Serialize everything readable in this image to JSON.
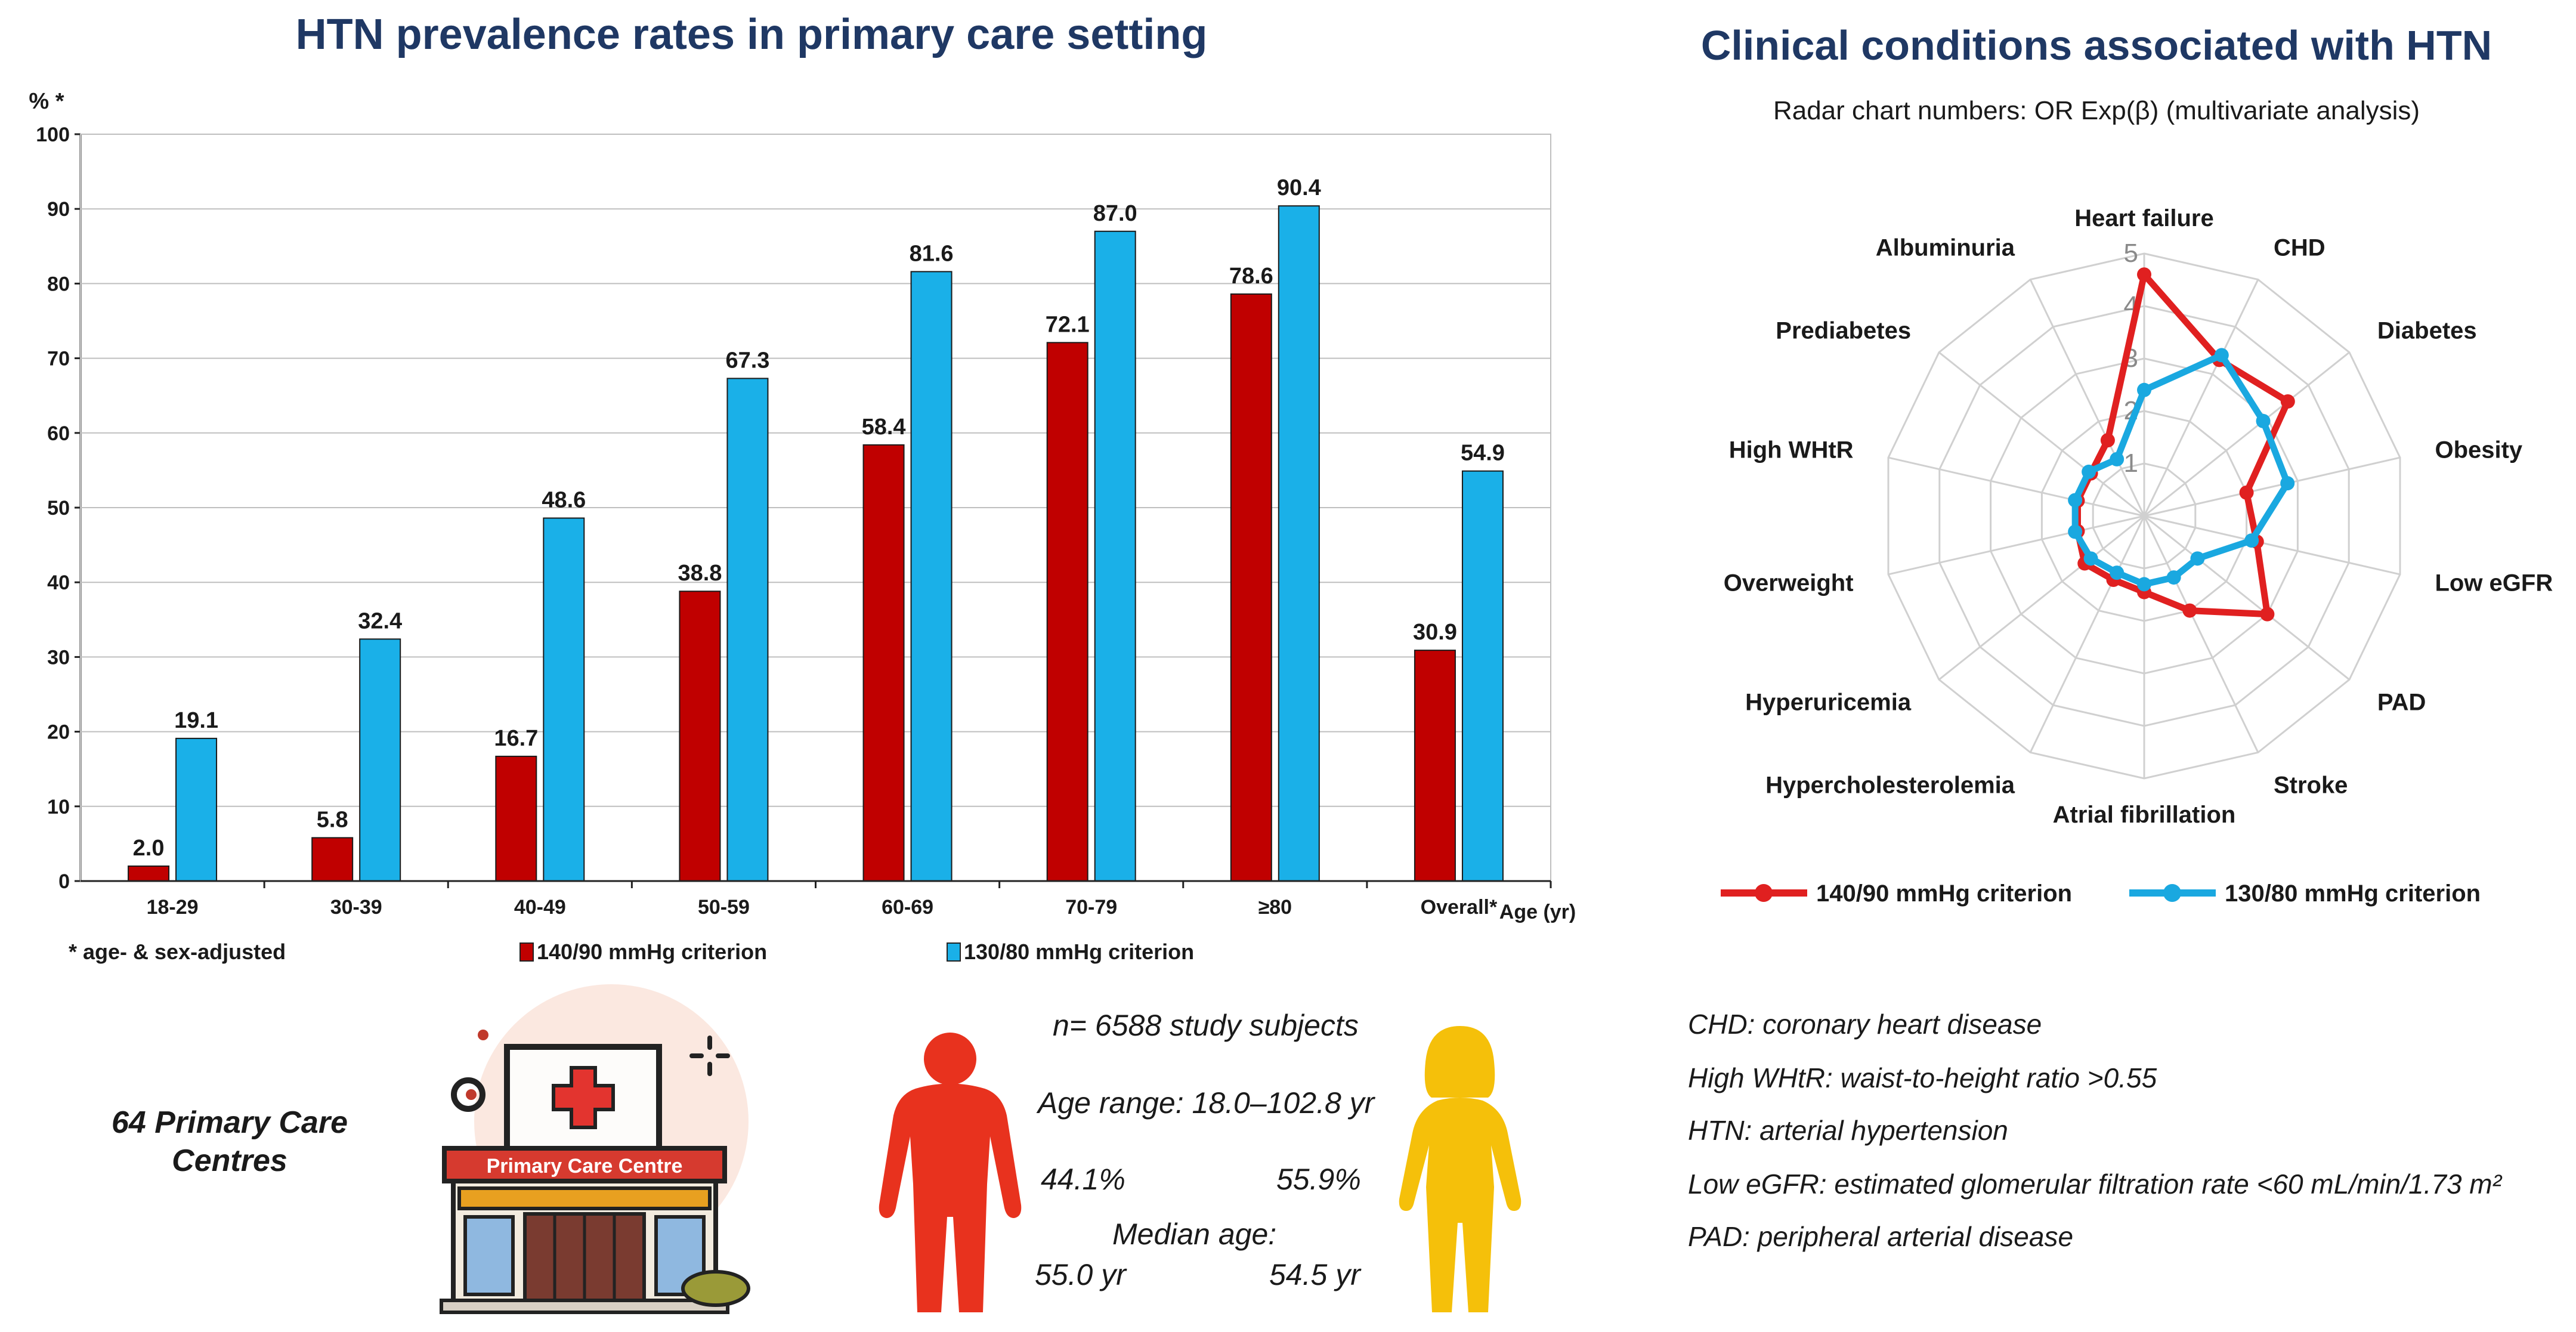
{
  "chart_data": [
    {
      "type": "bar",
      "title": "HTN prevalence rates in primary care setting",
      "ylabel": "% *",
      "xlabel": "Age (yr)",
      "ylim": [
        0,
        100
      ],
      "yticks": [
        "0",
        "10",
        "20",
        "30",
        "40",
        "50",
        "60",
        "70",
        "80",
        "90",
        "100"
      ],
      "categories": [
        "18-29",
        "30-39",
        "40-49",
        "50-59",
        "60-69",
        "70-79",
        "≥80",
        "Overall*"
      ],
      "series": [
        {
          "name": "140/90 mmHg criterion",
          "color": "#c00000",
          "values": [
            2.0,
            5.8,
            16.7,
            38.8,
            58.4,
            72.1,
            78.6,
            30.9
          ],
          "labels": [
            "2.0",
            "5.8",
            "16.7",
            "38.8",
            "58.4",
            "72.1",
            "78.6",
            "30.9"
          ]
        },
        {
          "name": "130/80 mmHg criterion",
          "color": "#1ab0e8",
          "values": [
            19.1,
            32.4,
            48.6,
            67.3,
            81.6,
            87.0,
            90.4,
            54.9
          ],
          "labels": [
            "19.1",
            "32.4",
            "48.6",
            "67.3",
            "81.6",
            "87.0",
            "90.4",
            "54.9"
          ]
        }
      ],
      "footnote": "* age- & sex-adjusted",
      "legend": "bottom"
    },
    {
      "type": "radar",
      "title": "Clinical conditions associated with HTN",
      "subtitle": "Radar chart numbers: OR Exp(β) (multivariate analysis)",
      "axes": [
        "Heart failure",
        "CHD",
        "Diabetes",
        "Obesity",
        "Low eGFR",
        "PAD",
        "Stroke",
        "Atrial fibrillation",
        "Hypercholesterolemia",
        "Hyperuricemia",
        "Overweight",
        "High WHtR",
        "Prediabetes",
        "Albuminuria"
      ],
      "rlim": [
        0,
        5
      ],
      "rticks": [
        "1",
        "2",
        "3",
        "4",
        "5"
      ],
      "series": [
        {
          "name": "140/90 mmHg criterion",
          "color": "#e02020",
          "values": [
            4.6,
            3.3,
            3.5,
            2.0,
            2.2,
            3.0,
            2.0,
            1.45,
            1.35,
            1.45,
            1.3,
            1.3,
            1.3,
            1.6
          ]
        },
        {
          "name": "130/80 mmHg criterion",
          "color": "#1aa8e0",
          "values": [
            2.4,
            3.4,
            2.9,
            2.8,
            2.1,
            1.3,
            1.3,
            1.3,
            1.2,
            1.3,
            1.35,
            1.35,
            1.35,
            1.2
          ]
        }
      ],
      "legend": "bottom"
    }
  ],
  "info": {
    "centres": "64 Primary Care\nCentres",
    "centre_sign": "Primary Care Centre",
    "subjects": "n= 6588 study subjects",
    "age_range": "Age range: 18.0–102.8 yr",
    "male_pct": "44.1%",
    "female_pct": "55.9%",
    "median_age_label": "Median age:",
    "male_median": "55.0 yr",
    "female_median": "54.5 yr"
  },
  "abbreviations": [
    "CHD: coronary heart disease",
    "High WHtR: waist-to-height ratio >0.55",
    "HTN: arterial hypertension",
    "Low eGFR: estimated glomerular filtration rate <60 mL/min/1.73 m²",
    "PAD: peripheral arterial disease"
  ],
  "colors": {
    "red_bar": "#c00000",
    "blue_bar": "#1ab0e8",
    "title": "#1f3864",
    "male": "#e8321e",
    "female": "#f5c00a"
  }
}
